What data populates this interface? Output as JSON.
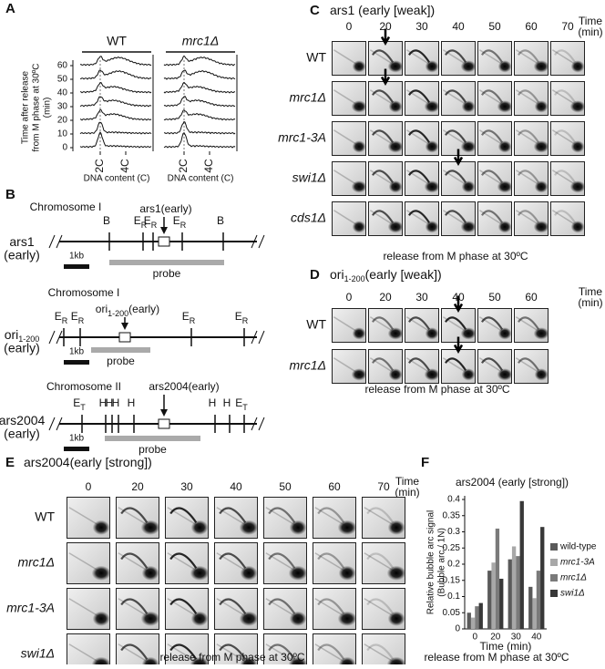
{
  "figure": {
    "a": {
      "label": "A",
      "groups": [
        "WT",
        "mrc1Δ"
      ],
      "y_label": [
        "Time after release",
        "from M phase at 30ºC",
        "(min)"
      ],
      "times": [
        0,
        10,
        20,
        30,
        40,
        50,
        60
      ],
      "x_ticks": [
        "2C",
        "4C"
      ],
      "x_label": "DNA content (C)"
    },
    "b": {
      "label": "B",
      "scale": "1kb",
      "probe": "probe",
      "maps": [
        {
          "chromosome": "Chromosome I",
          "name": "ars1",
          "timing": "(early)",
          "origin": "ars1(early)",
          "sites": [
            {
              "main": "B"
            },
            {
              "main": "E",
              "sub": "R"
            },
            {
              "main": "E",
              "sub": "R"
            },
            {
              "main": "E",
              "sub": "R"
            },
            {
              "main": "B"
            }
          ]
        },
        {
          "chromosome": "Chromosome I",
          "name": "ori",
          "name_sub": "1-200",
          "timing": "(early)",
          "origin": "ori",
          "origin_sub": "1-200",
          "origin_tail": "(early)",
          "sites": [
            {
              "main": "E",
              "sub": "R"
            },
            {
              "main": "E",
              "sub": "R"
            },
            {
              "main": "E",
              "sub": "R"
            },
            {
              "main": "E",
              "sub": "R"
            }
          ]
        },
        {
          "chromosome": "Chromosome II",
          "name": "ars2004",
          "timing": "(early)",
          "origin": "ars2004(early)",
          "sites": [
            {
              "main": "E",
              "sub": "T"
            },
            {
              "main": "H"
            },
            {
              "main": "H"
            },
            {
              "main": "H"
            },
            {
              "main": "H"
            },
            {
              "main": "H"
            },
            {
              "main": "H"
            },
            {
              "main": "E",
              "sub": "T"
            }
          ]
        }
      ]
    },
    "c": {
      "label": "C",
      "title": "ars1 (early [weak])",
      "times": [
        0,
        20,
        30,
        40,
        50,
        60,
        70
      ],
      "time_label": [
        "Time",
        "(min)"
      ],
      "rows": [
        "WT",
        "mrc1Δ",
        "mrc1-3A",
        "swi1Δ",
        "cds1Δ"
      ],
      "note": "release from M phase at 30ºC"
    },
    "d": {
      "label": "D",
      "title": "ori",
      "title_sub": "1-200",
      "title_tail": "(early [weak])",
      "times": [
        0,
        20,
        30,
        40,
        50,
        60
      ],
      "time_label": [
        "Time",
        "(min)"
      ],
      "rows": [
        "WT",
        "mrc1Δ"
      ],
      "note": "release from M phase at 30ºC"
    },
    "e": {
      "label": "E",
      "title": "ars2004(early [strong])",
      "times": [
        0,
        20,
        30,
        40,
        50,
        60,
        70
      ],
      "time_label": [
        "Time",
        "(min)"
      ],
      "rows": [
        "WT",
        "mrc1Δ",
        "mrc1-3A",
        "swi1Δ"
      ],
      "note": "release from M phase at 30ºC"
    }
  },
  "chart_data": {
    "type": "bar",
    "label": "F",
    "title": "ars2004 (early [strong])",
    "categories": [
      "0",
      "20",
      "30",
      "40"
    ],
    "series": [
      {
        "name": "wild-type",
        "color": "#5a5a5a",
        "values": [
          0.05,
          0.18,
          0.215,
          0.13
        ]
      },
      {
        "name": "mrc1-3A",
        "color": "#a8a8a8",
        "values": [
          0.035,
          0.205,
          0.255,
          0.095
        ]
      },
      {
        "name": "mrc1Δ",
        "color": "#7a7a7a",
        "values": [
          0.07,
          0.31,
          0.225,
          0.18
        ]
      },
      {
        "name": "swi1Δ",
        "color": "#383838",
        "values": [
          0.08,
          0.155,
          0.395,
          0.315
        ]
      }
    ],
    "ylim": [
      0,
      0.4
    ],
    "yticks": [
      0,
      0.05,
      0.1,
      0.15,
      0.2,
      0.25,
      0.3,
      0.35,
      0.4
    ],
    "y_label": [
      "Relative bubble arc signal",
      "(Bubble arc / 1N)"
    ],
    "x_label": "Time (min)",
    "note": "release from M phase at 30ºC",
    "legend": "right"
  }
}
